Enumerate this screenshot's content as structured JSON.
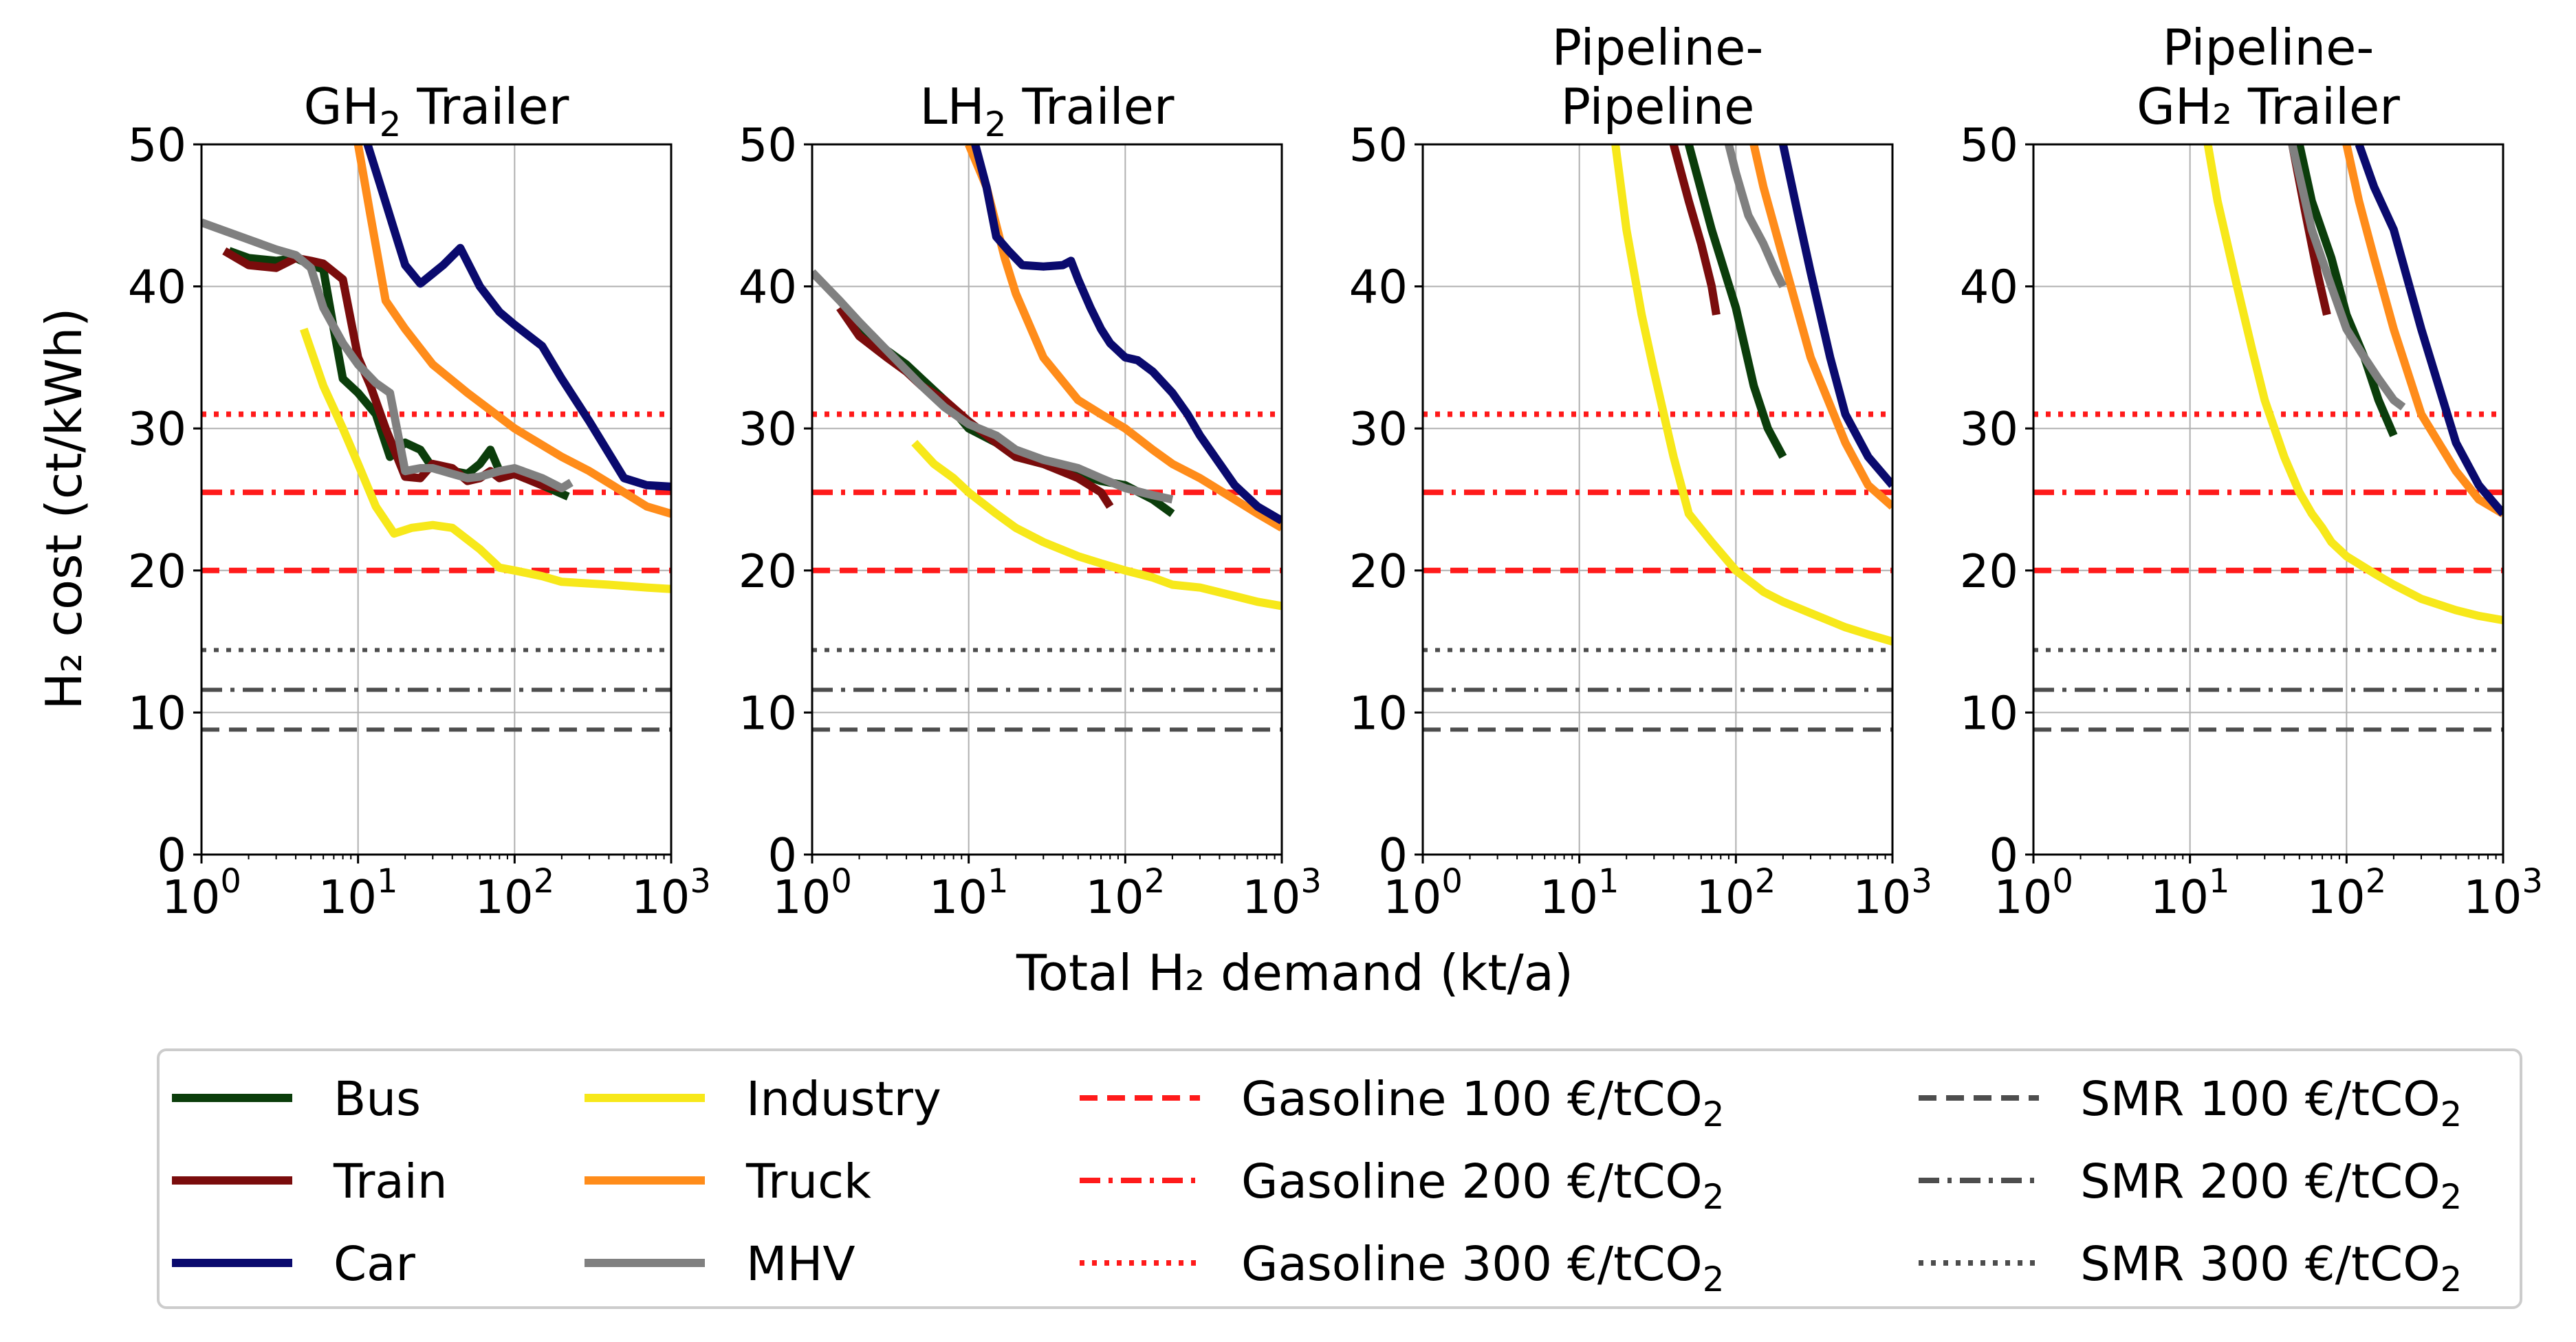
{
  "figure": {
    "ylabel": "H₂ cost (ct/kWh)",
    "xlabel": "Total H₂ demand (kt/a)"
  },
  "chart_data": {
    "type": "line",
    "x_scale": "log",
    "xlim": [
      1,
      1000
    ],
    "ylim": [
      0,
      50
    ],
    "yticks": [
      0,
      10,
      20,
      30,
      40,
      50
    ],
    "xticks": [
      1,
      10,
      100,
      1000
    ],
    "xtick_labels": [
      {
        "base": "10",
        "exp": "0"
      },
      {
        "base": "10",
        "exp": "1"
      },
      {
        "base": "10",
        "exp": "2"
      },
      {
        "base": "10",
        "exp": "3"
      }
    ],
    "grid": true,
    "legend_position": "bottom",
    "series_styles": {
      "Bus": {
        "color": "#0b3d0b",
        "dash": "solid"
      },
      "Train": {
        "color": "#7a0c0c",
        "dash": "solid"
      },
      "Car": {
        "color": "#0a0a6e",
        "dash": "solid"
      },
      "Industry": {
        "color": "#f7e81a",
        "dash": "solid"
      },
      "Truck": {
        "color": "#ff8c1a",
        "dash": "solid"
      },
      "MHV": {
        "color": "#808080",
        "dash": "solid"
      },
      "Gasoline 100 €/tCO₂": {
        "color": "#ff1a1a",
        "dash": "dashed"
      },
      "Gasoline 200 €/tCO₂": {
        "color": "#ff1a1a",
        "dash": "dashdot"
      },
      "Gasoline 300 €/tCO₂": {
        "color": "#ff1a1a",
        "dash": "dotted"
      },
      "SMR 100 €/tCO₂": {
        "color": "#4d4d4d",
        "dash": "dashed"
      },
      "SMR 200 €/tCO₂": {
        "color": "#4d4d4d",
        "dash": "dashdot"
      },
      "SMR 300 €/tCO₂": {
        "color": "#4d4d4d",
        "dash": "dotted"
      }
    },
    "reference_lines": [
      {
        "name": "Gasoline 100 €/tCO₂",
        "value": 20
      },
      {
        "name": "Gasoline 200 €/tCO₂",
        "value": 25.5
      },
      {
        "name": "Gasoline 300 €/tCO₂",
        "value": 31
      },
      {
        "name": "SMR 100 €/tCO₂",
        "value": 8.8
      },
      {
        "name": "SMR 200 €/tCO₂",
        "value": 11.6
      },
      {
        "name": "SMR 300 €/tCO₂",
        "value": 14.4
      }
    ],
    "panels": [
      {
        "title_main": "GH",
        "title_sub": "2",
        "title_rest": " Trailer",
        "series": [
          {
            "name": "Industry",
            "x": [
              4.5,
              6,
              8,
              10,
              13,
              17,
              22,
              30,
              40,
              60,
              80,
              100,
              150,
              200,
              400,
              700,
              1000
            ],
            "y": [
              37,
              33,
              30,
              27.5,
              24.5,
              22.6,
              23,
              23.2,
              23,
              21.5,
              20.2,
              20,
              19.6,
              19.2,
              19,
              18.8,
              18.7
            ]
          },
          {
            "name": "Truck",
            "x": [
              10,
              12,
              15,
              20,
              30,
              50,
              100,
              200,
              300,
              500,
              700,
              1000
            ],
            "y": [
              50,
              45,
              39,
              37,
              34.5,
              32.5,
              30,
              28,
              27,
              25.5,
              24.5,
              24
            ]
          },
          {
            "name": "Car",
            "x": [
              11.5,
              14,
              17,
              20,
              25,
              35,
              45,
              60,
              80,
              100,
              150,
              200,
              300,
              500,
              700,
              1000
            ],
            "y": [
              50,
              47,
              44,
              41.5,
              40.2,
              41.5,
              42.7,
              40,
              38.2,
              37.3,
              35.8,
              33.5,
              30.5,
              26.5,
              26,
              25.9
            ]
          },
          {
            "name": "Bus",
            "x": [
              1.5,
              2,
              3,
              4,
              5,
              6,
              7,
              8,
              10,
              13,
              16,
              20,
              25,
              30,
              40,
              50,
              60,
              70,
              80,
              100,
              150,
              220
            ],
            "y": [
              42.5,
              42,
              41.8,
              42,
              41.5,
              41.2,
              37,
              33.5,
              32.5,
              31,
              28,
              29,
              28.5,
              27.2,
              27,
              26.8,
              27.5,
              28.5,
              27,
              26.8,
              26,
              25.2
            ]
          },
          {
            "name": "Train",
            "x": [
              1.4,
              2,
              3,
              4,
              5,
              6,
              8,
              10,
              12,
              15,
              20,
              25,
              30,
              40,
              50,
              60,
              70,
              80,
              100,
              150,
              200
            ],
            "y": [
              42.5,
              41.5,
              41.3,
              42,
              41.8,
              41.6,
              40.5,
              35,
              33,
              30,
              26.6,
              26.5,
              27.5,
              27.2,
              26.3,
              26.5,
              27,
              26.5,
              26.8,
              26,
              25.8
            ]
          },
          {
            "name": "MHV",
            "x": [
              1,
              1.5,
              2,
              3,
              4,
              5,
              6,
              8,
              10,
              13,
              16,
              20,
              25,
              30,
              40,
              50,
              60,
              80,
              100,
              150,
              200,
              230
            ],
            "y": [
              44.5,
              43.8,
              43.3,
              42.6,
              42.2,
              41.3,
              38.5,
              36,
              34.5,
              33.2,
              32.5,
              27,
              27.2,
              27.2,
              26.8,
              26.5,
              26.6,
              27,
              27.2,
              26.5,
              25.8,
              26.2
            ]
          }
        ]
      },
      {
        "title_main": "LH",
        "title_sub": "2",
        "title_rest": " Trailer",
        "series": [
          {
            "name": "Industry",
            "x": [
              4.5,
              6,
              8,
              10,
              15,
              20,
              30,
              50,
              70,
              100,
              150,
              200,
              300,
              500,
              700,
              1000
            ],
            "y": [
              29,
              27.5,
              26.5,
              25.5,
              24,
              23,
              22,
              21,
              20.5,
              20,
              19.5,
              19,
              18.8,
              18.2,
              17.8,
              17.5
            ]
          },
          {
            "name": "Truck",
            "x": [
              10,
              13,
              17,
              20,
              30,
              50,
              70,
              100,
              150,
              200,
              300,
              500,
              700,
              1000
            ],
            "y": [
              50,
              47,
              42,
              39.5,
              35,
              32,
              31,
              30,
              28.5,
              27.5,
              26.5,
              25,
              24,
              23
            ]
          },
          {
            "name": "Car",
            "x": [
              11,
              13,
              15,
              18,
              22,
              30,
              40,
              45,
              50,
              60,
              70,
              80,
              100,
              120,
              150,
              200,
              250,
              300,
              500,
              700,
              1000
            ],
            "y": [
              50,
              47,
              43.5,
              42.5,
              41.5,
              41.4,
              41.5,
              41.8,
              40.5,
              38.5,
              37,
              36,
              35,
              34.8,
              34,
              32.5,
              31,
              29.5,
              26,
              24.5,
              23.5
            ]
          },
          {
            "name": "Bus",
            "x": [
              1.5,
              2,
              3,
              4,
              5,
              7,
              10,
              15,
              20,
              30,
              50,
              70,
              100,
              150,
              200
            ],
            "y": [
              38.5,
              37,
              35.5,
              34.5,
              33.5,
              32,
              30,
              29,
              28,
              27.5,
              26.8,
              26.3,
              26,
              25,
              24
            ]
          },
          {
            "name": "Train",
            "x": [
              1.5,
              2,
              3,
              4,
              5,
              7,
              10,
              15,
              20,
              30,
              50,
              70,
              80
            ],
            "y": [
              38.5,
              36.5,
              35,
              34,
              33,
              32,
              30.5,
              29,
              28,
              27.5,
              26.5,
              25.5,
              24.5
            ]
          },
          {
            "name": "MHV",
            "x": [
              1,
              1.5,
              2,
              3,
              5,
              7,
              10,
              15,
              20,
              30,
              50,
              70,
              100,
              150,
              200
            ],
            "y": [
              41,
              39,
              37.5,
              35.5,
              33,
              31.5,
              30.3,
              29.5,
              28.5,
              27.8,
              27.2,
              26.5,
              25.8,
              25.3,
              25
            ]
          }
        ]
      },
      {
        "title_line1": "Pipeline-",
        "title_line2": "Pipeline",
        "series": [
          {
            "name": "Industry",
            "x": [
              17,
              20,
              25,
              30,
              40,
              50,
              70,
              100,
              150,
              200,
              300,
              500,
              700,
              1000
            ],
            "y": [
              50,
              44,
              38,
              34,
              28,
              24,
              22,
              20,
              18.5,
              17.8,
              17,
              16,
              15.5,
              15
            ]
          },
          {
            "name": "Truck",
            "x": [
              130,
              150,
              200,
              300,
              500,
              700,
              1000
            ],
            "y": [
              50,
              47,
              42,
              35,
              29,
              26,
              24.5
            ]
          },
          {
            "name": "Car",
            "x": [
              200,
              250,
              300,
              400,
              500,
              700,
              1000
            ],
            "y": [
              50,
              45,
              41,
              35,
              31,
              28,
              26
            ]
          },
          {
            "name": "Bus",
            "x": [
              50,
              70,
              100,
              130,
              160,
              200
            ],
            "y": [
              50,
              44,
              38.5,
              33,
              30,
              28
            ]
          },
          {
            "name": "Train",
            "x": [
              40,
              50,
              60,
              70,
              75
            ],
            "y": [
              50,
              46,
              43,
              40,
              38
            ]
          },
          {
            "name": "MHV",
            "x": [
              90,
              100,
              120,
              150,
              180,
              200
            ],
            "y": [
              50,
              48,
              45,
              43,
              41,
              40
            ]
          }
        ]
      },
      {
        "title_line1": "Pipeline-",
        "title_line2": "GH₂ Trailer",
        "series": [
          {
            "name": "Industry",
            "x": [
              13,
              15,
              20,
              25,
              30,
              40,
              50,
              60,
              70,
              80,
              100,
              150,
              200,
              300,
              500,
              700,
              1000
            ],
            "y": [
              50,
              46,
              40,
              35.5,
              32,
              28,
              25.5,
              24,
              23,
              22,
              21,
              19.8,
              19,
              18,
              17.2,
              16.8,
              16.5
            ]
          },
          {
            "name": "Truck",
            "x": [
              100,
              120,
              150,
              200,
              300,
              500,
              700,
              1000
            ],
            "y": [
              50,
              46,
              42,
              37,
              31,
              27,
              25,
              24
            ]
          },
          {
            "name": "Car",
            "x": [
              120,
              150,
              200,
              300,
              500,
              700,
              1000
            ],
            "y": [
              50,
              47,
              44,
              37,
              29,
              26,
              24
            ]
          },
          {
            "name": "Bus",
            "x": [
              50,
              60,
              80,
              100,
              130,
              160,
              200
            ],
            "y": [
              50,
              46,
              42,
              38,
              35,
              32,
              29.5
            ]
          },
          {
            "name": "Train",
            "x": [
              45,
              55,
              65,
              75
            ],
            "y": [
              50,
              45,
              41,
              38
            ]
          },
          {
            "name": "MHV",
            "x": [
              45,
              60,
              80,
              100,
              130,
              160,
              200,
              230
            ],
            "y": [
              50,
              44,
              40,
              37,
              35,
              33.5,
              32,
              31.5
            ]
          }
        ]
      }
    ],
    "legend_columns": [
      [
        "Bus",
        "Train",
        "Car"
      ],
      [
        "Industry",
        "Truck",
        "MHV"
      ],
      [
        "Gasoline 100 €/tCO₂",
        "Gasoline 200 €/tCO₂",
        "Gasoline 300 €/tCO₂"
      ],
      [
        "SMR 100 €/tCO₂",
        "SMR 200 €/tCO₂",
        "SMR 300 €/tCO₂"
      ]
    ],
    "legend_labels": {
      "Bus": {
        "text": "Bus"
      },
      "Train": {
        "text": "Train"
      },
      "Car": {
        "text": "Car"
      },
      "Industry": {
        "text": "Industry"
      },
      "Truck": {
        "text": "Truck"
      },
      "MHV": {
        "text": "MHV"
      },
      "Gasoline 100 €/tCO₂": {
        "text": "Gasoline 100 €/tCO",
        "sub": "2"
      },
      "Gasoline 200 €/tCO₂": {
        "text": "Gasoline 200 €/tCO",
        "sub": "2"
      },
      "Gasoline 300 €/tCO₂": {
        "text": "Gasoline 300 €/tCO",
        "sub": "2"
      },
      "SMR 100 €/tCO₂": {
        "text": "SMR 100 €/tCO",
        "sub": "2"
      },
      "SMR 200 €/tCO₂": {
        "text": "SMR 200 €/tCO",
        "sub": "2"
      },
      "SMR 300 €/tCO₂": {
        "text": "SMR 300 €/tCO",
        "sub": "2"
      }
    }
  }
}
